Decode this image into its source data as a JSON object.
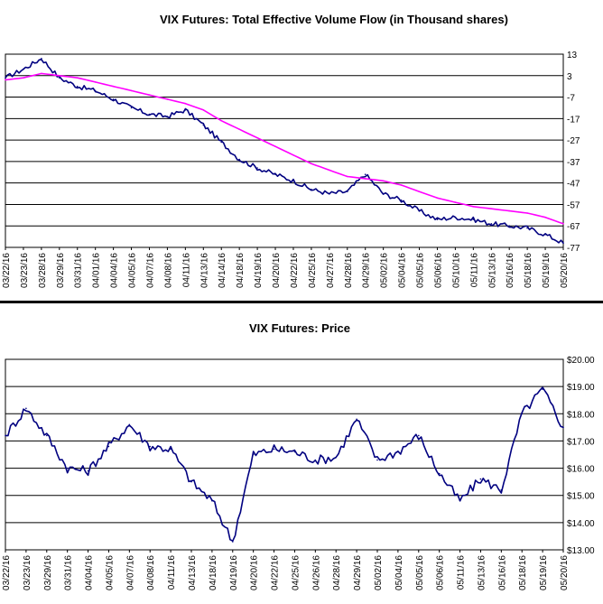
{
  "chart_data": [
    {
      "type": "line",
      "title": "VIX Futures: Total Effective Volume Flow (in Thousand shares)",
      "xlabel": "",
      "ylabel": "",
      "ylim": [
        -77,
        13
      ],
      "yticks": [
        "13",
        "3",
        "-7",
        "-17",
        "-27",
        "-37",
        "-47",
        "-57",
        "-67",
        "-77"
      ],
      "grid": "horizontal",
      "categories": [
        "03/22/16",
        "03/23/16",
        "03/28/16",
        "03/29/16",
        "03/31/16",
        "04/01/16",
        "04/04/16",
        "04/05/16",
        "04/07/16",
        "04/08/16",
        "04/11/16",
        "04/13/16",
        "04/14/16",
        "04/18/16",
        "04/19/16",
        "04/20/16",
        "04/22/16",
        "04/25/16",
        "04/27/16",
        "04/28/16",
        "04/29/16",
        "05/02/16",
        "05/04/16",
        "05/05/16",
        "05/06/16",
        "05/10/16",
        "05/11/16",
        "05/13/16",
        "05/16/16",
        "05/18/16",
        "05/19/16",
        "05/20/16"
      ],
      "series": [
        {
          "color": "#000080",
          "values": [
            2,
            6,
            11,
            2,
            -2,
            -4,
            -8,
            -12,
            -15,
            -16,
            -13,
            -20,
            -28,
            -36,
            -40,
            -43,
            -46,
            -50,
            -52,
            -51,
            -43,
            -52,
            -55,
            -60,
            -64,
            -63,
            -64,
            -66,
            -67,
            -68,
            -71,
            -75
          ]
        },
        {
          "color": "#ff00ff",
          "values": [
            1,
            2,
            4,
            3,
            2,
            0,
            -2,
            -4,
            -6,
            -8,
            -10,
            -13,
            -18,
            -22,
            -26,
            -30,
            -34,
            -38,
            -41,
            -44,
            -45,
            -46,
            -48,
            -51,
            -54,
            -56,
            -58,
            -59,
            -60,
            -61,
            -63,
            -66
          ]
        }
      ]
    },
    {
      "type": "line",
      "title": "VIX Futures: Price",
      "xlabel": "",
      "ylabel": "",
      "ylim": [
        13,
        20
      ],
      "yticks": [
        "$20.00",
        "$19.00",
        "$18.00",
        "$17.00",
        "$16.00",
        "$15.00",
        "$14.00",
        "$13.00"
      ],
      "grid": "horizontal",
      "categories": [
        "03/22/16",
        "03/23/16",
        "03/29/16",
        "03/31/16",
        "04/04/16",
        "04/05/16",
        "04/07/16",
        "04/08/16",
        "04/11/16",
        "04/13/16",
        "04/18/16",
        "04/19/16",
        "04/20/16",
        "04/22/16",
        "04/25/16",
        "04/26/16",
        "04/28/16",
        "04/29/16",
        "05/02/16",
        "05/04/16",
        "05/05/16",
        "05/06/16",
        "05/11/16",
        "05/13/16",
        "05/16/16",
        "05/18/16",
        "05/19/16",
        "05/20/16"
      ],
      "series": [
        {
          "color": "#000080",
          "values": [
            17.2,
            18.2,
            17.2,
            16.0,
            15.9,
            16.8,
            17.6,
            16.8,
            16.7,
            15.5,
            14.8,
            13.3,
            16.5,
            16.7,
            16.6,
            16.3,
            16.4,
            17.8,
            16.3,
            16.6,
            17.2,
            15.8,
            14.8,
            15.6,
            15.2,
            18.0,
            18.9,
            17.5
          ]
        }
      ]
    }
  ]
}
